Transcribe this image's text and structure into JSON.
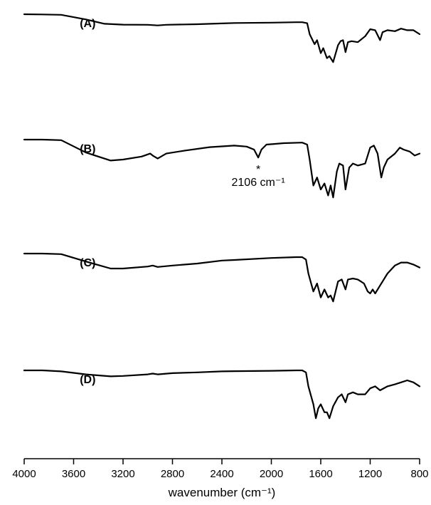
{
  "chart_data": {
    "type": "line",
    "xlabel": "wavenumber (cm⁻¹)",
    "xlim": [
      4000,
      800
    ],
    "x_reversed": true,
    "grid": false,
    "legend": "none",
    "xticks": [
      4000,
      3600,
      3200,
      2800,
      2400,
      2000,
      1600,
      1200,
      800
    ],
    "series": [
      {
        "name": "(A)",
        "points": [
          [
            4000,
            1.0
          ],
          [
            3850,
            0.99
          ],
          [
            3700,
            0.97
          ],
          [
            3500,
            0.74
          ],
          [
            3350,
            0.52
          ],
          [
            3200,
            0.48
          ],
          [
            3000,
            0.47
          ],
          [
            2920,
            0.44
          ],
          [
            2850,
            0.47
          ],
          [
            2600,
            0.5
          ],
          [
            2400,
            0.54
          ],
          [
            2300,
            0.56
          ],
          [
            2000,
            0.58
          ],
          [
            1800,
            0.6
          ],
          [
            1750,
            0.6
          ],
          [
            1710,
            0.55
          ],
          [
            1690,
            0.0
          ],
          [
            1650,
            -0.5
          ],
          [
            1630,
            -0.3
          ],
          [
            1600,
            -0.95
          ],
          [
            1580,
            -0.7
          ],
          [
            1550,
            -1.2
          ],
          [
            1530,
            -1.1
          ],
          [
            1500,
            -1.4
          ],
          [
            1460,
            -0.55
          ],
          [
            1440,
            -0.35
          ],
          [
            1420,
            -0.3
          ],
          [
            1400,
            -0.9
          ],
          [
            1380,
            -0.4
          ],
          [
            1350,
            -0.35
          ],
          [
            1300,
            -0.4
          ],
          [
            1240,
            -0.1
          ],
          [
            1200,
            0.25
          ],
          [
            1160,
            0.2
          ],
          [
            1120,
            -0.3
          ],
          [
            1100,
            0.1
          ],
          [
            1060,
            0.2
          ],
          [
            1000,
            0.15
          ],
          [
            950,
            0.28
          ],
          [
            900,
            0.2
          ],
          [
            850,
            0.2
          ],
          [
            800,
            0.0
          ]
        ]
      },
      {
        "name": "(B)",
        "points": [
          [
            4000,
            1.0
          ],
          [
            3850,
            1.0
          ],
          [
            3700,
            0.97
          ],
          [
            3500,
            0.35
          ],
          [
            3300,
            -0.05
          ],
          [
            3200,
            0.0
          ],
          [
            3050,
            0.15
          ],
          [
            2980,
            0.3
          ],
          [
            2960,
            0.2
          ],
          [
            2920,
            0.05
          ],
          [
            2850,
            0.3
          ],
          [
            2700,
            0.45
          ],
          [
            2500,
            0.62
          ],
          [
            2300,
            0.7
          ],
          [
            2200,
            0.65
          ],
          [
            2140,
            0.5
          ],
          [
            2106,
            0.1
          ],
          [
            2080,
            0.5
          ],
          [
            2040,
            0.75
          ],
          [
            1900,
            0.82
          ],
          [
            1750,
            0.85
          ],
          [
            1710,
            0.75
          ],
          [
            1690,
            0.0
          ],
          [
            1660,
            -1.3
          ],
          [
            1630,
            -0.9
          ],
          [
            1600,
            -1.5
          ],
          [
            1570,
            -1.2
          ],
          [
            1540,
            -1.8
          ],
          [
            1520,
            -1.3
          ],
          [
            1500,
            -1.9
          ],
          [
            1470,
            -0.6
          ],
          [
            1450,
            -0.2
          ],
          [
            1420,
            -0.3
          ],
          [
            1400,
            -1.5
          ],
          [
            1370,
            -0.4
          ],
          [
            1340,
            -0.2
          ],
          [
            1300,
            -0.3
          ],
          [
            1240,
            -0.2
          ],
          [
            1200,
            0.6
          ],
          [
            1170,
            0.7
          ],
          [
            1140,
            0.3
          ],
          [
            1110,
            -0.9
          ],
          [
            1090,
            -0.4
          ],
          [
            1060,
            0.0
          ],
          [
            1000,
            0.3
          ],
          [
            960,
            0.6
          ],
          [
            930,
            0.5
          ],
          [
            880,
            0.4
          ],
          [
            840,
            0.2
          ],
          [
            800,
            0.3
          ]
        ]
      },
      {
        "name": "(C)",
        "points": [
          [
            4000,
            1.0
          ],
          [
            3850,
            1.0
          ],
          [
            3700,
            0.97
          ],
          [
            3500,
            0.6
          ],
          [
            3300,
            0.25
          ],
          [
            3200,
            0.25
          ],
          [
            3000,
            0.35
          ],
          [
            2960,
            0.4
          ],
          [
            2920,
            0.33
          ],
          [
            2800,
            0.4
          ],
          [
            2600,
            0.5
          ],
          [
            2400,
            0.65
          ],
          [
            2300,
            0.68
          ],
          [
            2000,
            0.78
          ],
          [
            1800,
            0.82
          ],
          [
            1750,
            0.82
          ],
          [
            1720,
            0.7
          ],
          [
            1700,
            0.0
          ],
          [
            1660,
            -0.9
          ],
          [
            1630,
            -0.5
          ],
          [
            1600,
            -1.2
          ],
          [
            1570,
            -0.8
          ],
          [
            1540,
            -1.2
          ],
          [
            1520,
            -1.1
          ],
          [
            1500,
            -1.4
          ],
          [
            1460,
            -0.4
          ],
          [
            1430,
            -0.3
          ],
          [
            1400,
            -0.8
          ],
          [
            1380,
            -0.3
          ],
          [
            1340,
            -0.25
          ],
          [
            1300,
            -0.3
          ],
          [
            1250,
            -0.5
          ],
          [
            1220,
            -0.9
          ],
          [
            1200,
            -1.0
          ],
          [
            1180,
            -0.8
          ],
          [
            1160,
            -1.0
          ],
          [
            1130,
            -0.7
          ],
          [
            1100,
            -0.4
          ],
          [
            1060,
            0.0
          ],
          [
            1000,
            0.4
          ],
          [
            950,
            0.55
          ],
          [
            900,
            0.55
          ],
          [
            850,
            0.45
          ],
          [
            800,
            0.3
          ]
        ]
      },
      {
        "name": "(D)",
        "points": [
          [
            4000,
            1.0
          ],
          [
            3850,
            1.0
          ],
          [
            3700,
            0.95
          ],
          [
            3500,
            0.8
          ],
          [
            3300,
            0.7
          ],
          [
            3200,
            0.72
          ],
          [
            3000,
            0.8
          ],
          [
            2960,
            0.84
          ],
          [
            2920,
            0.8
          ],
          [
            2800,
            0.86
          ],
          [
            2600,
            0.9
          ],
          [
            2400,
            0.95
          ],
          [
            2300,
            0.96
          ],
          [
            2000,
            0.98
          ],
          [
            1800,
            1.0
          ],
          [
            1750,
            1.0
          ],
          [
            1720,
            0.9
          ],
          [
            1700,
            0.2
          ],
          [
            1660,
            -0.7
          ],
          [
            1640,
            -1.4
          ],
          [
            1620,
            -0.9
          ],
          [
            1600,
            -0.7
          ],
          [
            1570,
            -1.1
          ],
          [
            1550,
            -1.1
          ],
          [
            1530,
            -1.4
          ],
          [
            1500,
            -0.8
          ],
          [
            1460,
            -0.35
          ],
          [
            1430,
            -0.2
          ],
          [
            1400,
            -0.6
          ],
          [
            1380,
            -0.2
          ],
          [
            1340,
            -0.1
          ],
          [
            1300,
            -0.2
          ],
          [
            1240,
            -0.2
          ],
          [
            1200,
            0.1
          ],
          [
            1160,
            0.2
          ],
          [
            1120,
            0.0
          ],
          [
            1060,
            0.2
          ],
          [
            1000,
            0.3
          ],
          [
            950,
            0.4
          ],
          [
            900,
            0.5
          ],
          [
            850,
            0.4
          ],
          [
            800,
            0.2
          ]
        ]
      }
    ],
    "annotations": [
      {
        "x": 2106,
        "series": "(B)",
        "marker": "*",
        "text": "2106 cm⁻¹"
      }
    ]
  }
}
